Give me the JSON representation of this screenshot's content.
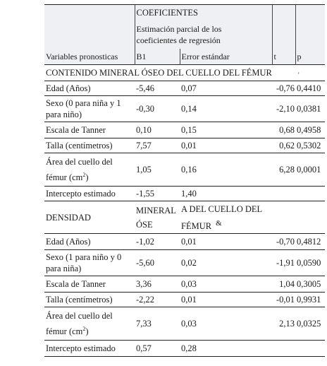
{
  "header": {
    "group_title": "COEFICIENTES",
    "group_subtitle": "Estimación parcial de los coeficientes de regresión",
    "col_vars": "Variables pronosticas",
    "col_b1": "B1",
    "col_err": "Error estándar",
    "col_t": "t",
    "col_p": "p",
    "p_mark": "'"
  },
  "section1": {
    "title": "CONTENIDO MINERAL ÓSEO DEL CUELLO DEL FÉMUR",
    "rows": [
      {
        "label": "Edad (Años)",
        "b1": "-5,46",
        "err": "0,07",
        "t": "-0,76",
        "p": "0,4410"
      },
      {
        "label": "Sexo (0 para niña y 1 para niño)",
        "b1": "-0,30",
        "err": "0,14",
        "t": "-2,10",
        "p": "0,0381"
      },
      {
        "label": "Escala de Tanner",
        "b1": "0,10",
        "err": "0,15",
        "t": "0,68",
        "p": "0,4958"
      },
      {
        "label": "Talla (centímetros)",
        "b1": "7,57",
        "err": "0,01",
        "t": "0,62",
        "p": "0,5302"
      },
      {
        "label_a": "Área del cuello del",
        "label_b": "fémur (cm",
        "label_sup": "2",
        "label_c": ")",
        "b1": "1,05",
        "err": "0,16",
        "t": "6,28",
        "p": "0,0001"
      },
      {
        "label": "Intercepto estimado",
        "b1": "-1,55",
        "err": "1,40",
        "t": "",
        "p": ""
      }
    ]
  },
  "section2": {
    "title": "DENSIDAD",
    "title_part2": "MINERAL ÓSE",
    "title_part3": "A DEL CUELLO DEL FÉMUR",
    "amp": "&",
    "rows": [
      {
        "label": "Edad (Años)",
        "b1": "-1,02",
        "err": "0,01",
        "t": "-0,70",
        "p": "0,4812"
      },
      {
        "label": "Sexo (1 para niño y 0 para niña)",
        "b1": "-5,60",
        "err": "0,02",
        "t": "-1,91",
        "p": "0,0590"
      },
      {
        "label": "Escala de Tanner",
        "b1": "3,36",
        "err": "0,03",
        "t": "1,04",
        "p": "0,3005"
      },
      {
        "label": "Talla (centímetros)",
        "b1": "-2,22",
        "err": "0,01",
        "t": "-0,01",
        "p": "0,9931"
      },
      {
        "label_a": "Área del cuello del",
        "label_b": "fémur (cm",
        "label_sup": "2",
        "label_c": ")",
        "b1": "7,33",
        "err": "0,03",
        "t": "2,13",
        "p": "0,0325"
      },
      {
        "label": "Intercepto estimado",
        "b1": "0,57",
        "err": "0,28",
        "t": "",
        "p": ""
      }
    ]
  }
}
